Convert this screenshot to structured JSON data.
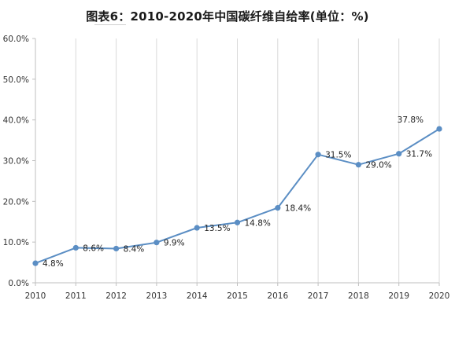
{
  "chart_data": {
    "type": "line",
    "title": "图表6：2010-2020年中国碳纤维自给率(单位：%)",
    "x": [
      "2010",
      "2011",
      "2012",
      "2013",
      "2014",
      "2015",
      "2016",
      "2017",
      "2018",
      "2019",
      "2020"
    ],
    "series": [
      {
        "values": [
          4.8,
          8.6,
          8.4,
          9.9,
          13.5,
          14.8,
          18.4,
          31.5,
          29.0,
          31.7,
          37.8
        ]
      }
    ],
    "data_labels": [
      "4.8%",
      "8.6%",
      "8.4%",
      "9.9%",
      "13.5%",
      "14.8%",
      "18.4%",
      "31.5%",
      "29.0%",
      "31.7%",
      "37.8%"
    ],
    "y_ticks": [
      "0.0%",
      "10.0%",
      "20.0%",
      "30.0%",
      "40.0%",
      "50.0%",
      "60.0%"
    ],
    "ylim": [
      0,
      60
    ],
    "grid": "vertical",
    "line_color": "#5b8ec4",
    "grid_color": "#d9d9d9",
    "axis_color": "#bfbfbf"
  }
}
